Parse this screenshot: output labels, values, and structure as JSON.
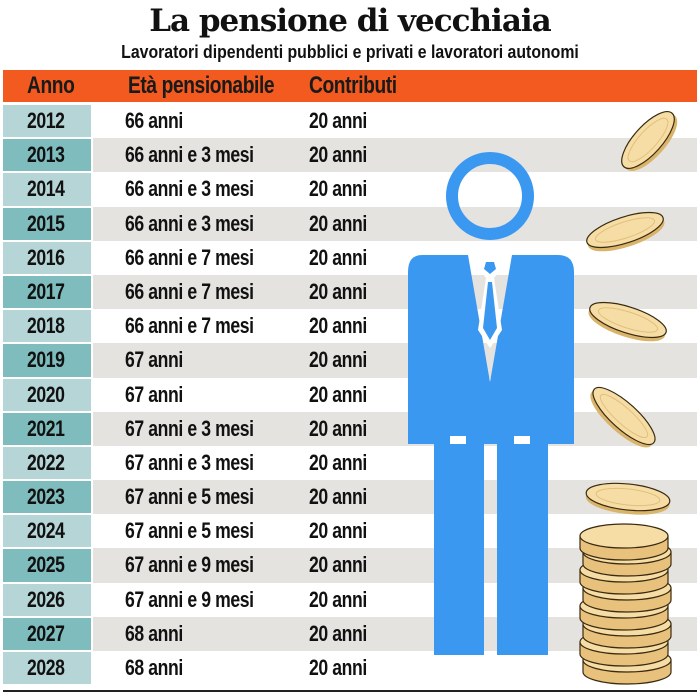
{
  "title": "La pensione di vecchiaia",
  "subtitle": "Lavoratori dipendenti pubblici e privati e lavoratori autonomi",
  "columns": {
    "year": "Anno",
    "age": "Età pensionabile",
    "contributions": "Contributi"
  },
  "rows": [
    {
      "year": "2012",
      "age": "66 anni",
      "contributions": "20 anni"
    },
    {
      "year": "2013",
      "age": "66 anni e 3 mesi",
      "contributions": "20 anni"
    },
    {
      "year": "2014",
      "age": "66 anni e 3 mesi",
      "contributions": "20 anni"
    },
    {
      "year": "2015",
      "age": "66 anni e 3 mesi",
      "contributions": "20 anni"
    },
    {
      "year": "2016",
      "age": "66 anni e 7 mesi",
      "contributions": "20 anni"
    },
    {
      "year": "2017",
      "age": "66 anni e 7 mesi",
      "contributions": "20 anni"
    },
    {
      "year": "2018",
      "age": "66 anni e 7 mesi",
      "contributions": "20 anni"
    },
    {
      "year": "2019",
      "age": "67 anni",
      "contributions": "20 anni"
    },
    {
      "year": "2020",
      "age": "67 anni",
      "contributions": "20 anni"
    },
    {
      "year": "2021",
      "age": "67 anni e 3 mesi",
      "contributions": "20 anni"
    },
    {
      "year": "2022",
      "age": "67 anni e 3 mesi",
      "contributions": "20 anni"
    },
    {
      "year": "2023",
      "age": "67 anni e 5 mesi",
      "contributions": "20 anni"
    },
    {
      "year": "2024",
      "age": "67 anni e 5 mesi",
      "contributions": "20 anni"
    },
    {
      "year": "2025",
      "age": "67 anni e 9 mesi",
      "contributions": "20 anni"
    },
    {
      "year": "2026",
      "age": "67 anni e 9 mesi",
      "contributions": "20 anni"
    },
    {
      "year": "2027",
      "age": "68 anni",
      "contributions": "20 anni"
    },
    {
      "year": "2028",
      "age": "68 anni",
      "contributions": "20 anni"
    }
  ],
  "colors": {
    "header": "#f25a1f",
    "year_light": "#b5d5d6",
    "year_dark": "#7fbcbd",
    "band": "#e5e3e0",
    "figure": "#3b98f0",
    "coin": "#f3d79a"
  },
  "icons": [
    "businessman-figure-icon",
    "coin-icon",
    "coin-stack-icon"
  ]
}
